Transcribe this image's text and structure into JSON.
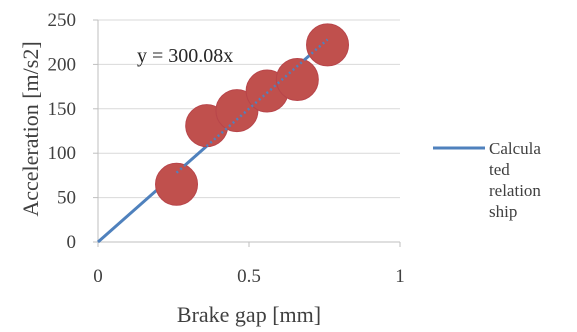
{
  "chart_data": {
    "type": "scatter",
    "xlabel": "Brake gap [mm]",
    "ylabel": "Acceleration [m/s2]",
    "xlim": [
      0,
      1
    ],
    "ylim": [
      0,
      250
    ],
    "x_ticks": [
      0,
      0.5,
      1
    ],
    "x_tick_labels": [
      "0",
      "0.5",
      "1"
    ],
    "y_ticks": [
      0,
      50,
      100,
      150,
      200,
      250
    ],
    "y_tick_labels": [
      "0",
      "50",
      "100",
      "150",
      "200",
      "250"
    ],
    "grid": "horizontal",
    "legend_position": "right",
    "series": [
      {
        "type": "scatter",
        "color": "#C0504D",
        "x": [
          0.26,
          0.36,
          0.46,
          0.56,
          0.66,
          0.76
        ],
        "y": [
          65,
          131,
          148,
          170,
          183,
          222
        ]
      },
      {
        "type": "line",
        "name": "Calculated relationship",
        "legend_lines": [
          "Calcula",
          "ted",
          "relation",
          "ship"
        ],
        "color": "#4F81BD",
        "x": [
          0,
          0.76
        ],
        "y": [
          0,
          228
        ]
      }
    ],
    "trendline": {
      "equation": "y = 300.08x",
      "slope": 300.08,
      "style": "dotted",
      "color": "#4F81BD",
      "x_range": [
        0.26,
        0.76
      ]
    }
  }
}
